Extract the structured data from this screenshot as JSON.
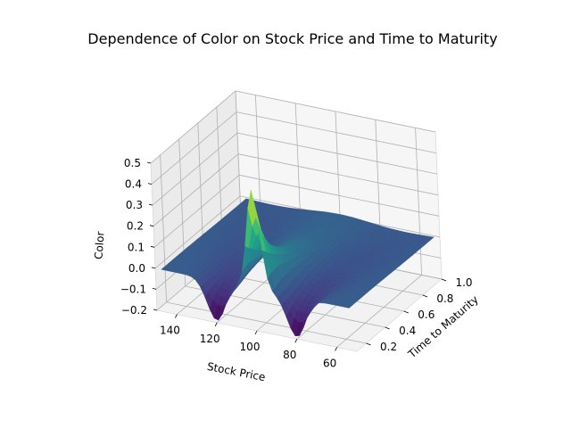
{
  "chart_data": {
    "type": "surface",
    "title": "Dependence of Color on Stock Price and Time to Maturity",
    "xlabel": "Stock Price",
    "ylabel": "Time to Maturity",
    "zlabel": "Color",
    "xticks": [
      "140",
      "120",
      "100",
      "80",
      "60"
    ],
    "xtick_values": [
      140,
      120,
      100,
      80,
      60
    ],
    "yticks": [
      "0.2",
      "0.4",
      "0.6",
      "0.8",
      "1.0"
    ],
    "ytick_values": [
      0.2,
      0.4,
      0.6,
      0.8,
      1.0
    ],
    "zticks": [
      "0.5",
      "0.4",
      "0.3",
      "0.2",
      "0.1",
      "0.0",
      "−0.1",
      "−0.2"
    ],
    "ztick_values": [
      0.5,
      0.4,
      0.3,
      0.2,
      0.1,
      0.0,
      -0.1,
      -0.2
    ],
    "xlim": [
      50,
      150
    ],
    "ylim": [
      0.1,
      1.0
    ],
    "zlim": [
      -0.2,
      0.5
    ],
    "colormap": "viridis",
    "grid": true,
    "surface_peaks": [
      {
        "stock_price": 100,
        "time_to_maturity": 0.1,
        "color": 0.47
      },
      {
        "stock_price": 120,
        "time_to_maturity": 0.1,
        "color": -0.19
      },
      {
        "stock_price": 80,
        "time_to_maturity": 0.1,
        "color": -0.19
      }
    ],
    "surface_baseline": 0.0
  }
}
